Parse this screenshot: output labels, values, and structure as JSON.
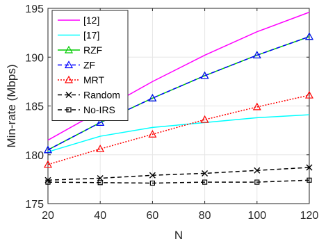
{
  "chart_data": {
    "type": "line",
    "title": "",
    "xlabel": "N",
    "ylabel": "Min-rate (Mbps)",
    "xlim": [
      20,
      120
    ],
    "ylim": [
      175,
      195
    ],
    "xticks": [
      20,
      40,
      60,
      80,
      100,
      120
    ],
    "yticks": [
      175,
      180,
      185,
      190,
      195
    ],
    "grid": true,
    "legend_position": "top-left",
    "x": [
      20,
      40,
      60,
      80,
      100,
      120
    ],
    "series": [
      {
        "name": "[12]",
        "values": [
          181.5,
          184.5,
          187.5,
          190.2,
          192.6,
          194.6
        ],
        "color": "#ff00ff",
        "dash": "solid",
        "marker": "none"
      },
      {
        "name": "[17]",
        "values": [
          180.3,
          181.9,
          182.8,
          183.3,
          183.8,
          184.1
        ],
        "color": "#00ffff",
        "dash": "solid",
        "marker": "none"
      },
      {
        "name": "RZF",
        "values": [
          180.5,
          183.3,
          185.8,
          188.1,
          190.2,
          192.1
        ],
        "color": "#00cc00",
        "dash": "solid",
        "marker": "triangle"
      },
      {
        "name": "ZF",
        "values": [
          180.5,
          183.3,
          185.8,
          188.1,
          190.2,
          192.1
        ],
        "color": "#0000ff",
        "dash": "dashed",
        "marker": "triangle"
      },
      {
        "name": "MRT",
        "values": [
          179.0,
          180.6,
          182.1,
          183.6,
          184.9,
          186.1
        ],
        "color": "#ff0000",
        "dash": "dotted",
        "marker": "triangle"
      },
      {
        "name": "Random",
        "values": [
          177.4,
          177.6,
          177.9,
          178.1,
          178.4,
          178.7
        ],
        "color": "#000000",
        "dash": "dashed",
        "marker": "x"
      },
      {
        "name": "No-IRS",
        "values": [
          177.2,
          177.15,
          177.1,
          177.2,
          177.2,
          177.4
        ],
        "color": "#000000",
        "dash": "dashed",
        "marker": "square"
      }
    ]
  }
}
